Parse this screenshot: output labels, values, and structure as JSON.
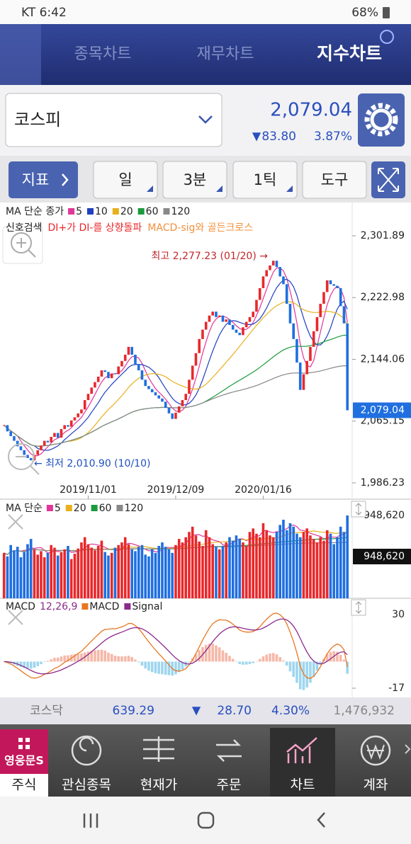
{
  "status_bar": {
    "carrier_time": "KT 6:42",
    "battery": "68%"
  },
  "tabs": [
    "종목차트",
    "재무차트",
    "지수차트"
  ],
  "index": {
    "name": "코스피",
    "price": "2,079.04",
    "change_arrow": "▼",
    "change": "83.80",
    "change_pct": "3.87%"
  },
  "toolbar": [
    "지표",
    "일",
    "3분",
    "1틱",
    "도구"
  ],
  "chart_data": [
    {
      "type": "candlestick",
      "legend_title": "MA 단순 종가",
      "ma": [
        {
          "name": "5",
          "color": "#e0359a"
        },
        {
          "name": "10",
          "color": "#1f3fbf"
        },
        {
          "name": "20",
          "color": "#e8b01c"
        },
        {
          "name": "60",
          "color": "#1c9a3c"
        },
        {
          "name": "120",
          "color": "#888888"
        }
      ],
      "signal_label": "신호검색",
      "signals": [
        "DI+가 DI-를 상향돌파",
        "MACD-sig와 골든크로스"
      ],
      "annotations": [
        "최고 2,277.23 (01/20) →",
        "← 최저 2,010.90 (10/10)"
      ],
      "up_color": "#e8282b",
      "down_color": "#1f6fe0",
      "closes": [
        2060,
        2052,
        2046,
        2040,
        2033,
        2028,
        2022,
        2018,
        2015,
        2022,
        2028,
        2034,
        2040,
        2038,
        2045,
        2050,
        2044,
        2055,
        2060,
        2058,
        2066,
        2070,
        2075,
        2080,
        2092,
        2100,
        2108,
        2115,
        2122,
        2130,
        2128,
        2120,
        2126,
        2125,
        2135,
        2142,
        2150,
        2160,
        2150,
        2138,
        2130,
        2118,
        2110,
        2106,
        2102,
        2098,
        2094,
        2090,
        2082,
        2075,
        2068,
        2076,
        2084,
        2092,
        2100,
        2118,
        2136,
        2152,
        2170,
        2182,
        2192,
        2200,
        2205,
        2198,
        2200,
        2192,
        2195,
        2188,
        2182,
        2178,
        2175,
        2185,
        2192,
        2198,
        2205,
        2220,
        2235,
        2250,
        2258,
        2264,
        2270,
        2262,
        2250,
        2240,
        2215,
        2190,
        2170,
        2140,
        2105,
        2125,
        2142,
        2160,
        2180,
        2198,
        2215,
        2230,
        2245,
        2240,
        2238,
        2235,
        2212,
        2190,
        2079
      ],
      "ylim": [
        1986.23,
        2301.89
      ],
      "yticks": [
        {
          "value": 2301.89,
          "label": "2,301.89"
        },
        {
          "value": 2222.98,
          "label": "2,222.98"
        },
        {
          "value": 2144.06,
          "label": "2,144.06"
        },
        {
          "value": 2065.15,
          "label": "2,065.15"
        },
        {
          "value": 1986.23,
          "label": "1,986.23"
        }
      ],
      "xticks": [
        {
          "value": 25,
          "label": "2019/11/01"
        },
        {
          "value": 51,
          "label": "2019/12/09"
        },
        {
          "value": 77,
          "label": "2020/01/16"
        }
      ]
    },
    {
      "type": "bar",
      "legend_title": "MA 단순",
      "ma": [
        {
          "name": "5",
          "color": "#e0359a"
        },
        {
          "name": "20",
          "color": "#e8b01c"
        },
        {
          "name": "60",
          "color": "#1c9a3c"
        },
        {
          "name": "120",
          "color": "#888888"
        }
      ],
      "values": [
        520000,
        480000,
        610000,
        550000,
        590000,
        470000,
        530000,
        620000,
        680000,
        560000,
        500000,
        540000,
        470000,
        520000,
        610000,
        580000,
        490000,
        530000,
        560000,
        600000,
        450000,
        510000,
        570000,
        640000,
        700000,
        620000,
        580000,
        550000,
        600000,
        660000,
        530000,
        490000,
        520000,
        580000,
        610000,
        640000,
        700000,
        620000,
        560000,
        540000,
        590000,
        610000,
        500000,
        480000,
        560000,
        520000,
        600000,
        640000,
        590000,
        560000,
        520000,
        610000,
        680000,
        640000,
        700000,
        760000,
        820000,
        720000,
        650000,
        600000,
        780000,
        700000,
        620000,
        590000,
        560000,
        600000,
        640000,
        700000,
        660000,
        720000,
        680000,
        640000,
        600000,
        760000,
        800000,
        740000,
        700000,
        860000,
        780000,
        720000,
        700000,
        760000,
        840000,
        900000,
        780000,
        860000,
        820000,
        740000,
        700000,
        760000,
        800000,
        720000,
        680000,
        640000,
        700000,
        660000,
        780000,
        740000,
        620000,
        700000,
        820000,
        760000,
        948620
      ],
      "ylim": [
        0,
        948620
      ],
      "yticks": [
        {
          "value": 948620,
          "label": "948,620"
        }
      ]
    },
    {
      "type": "macd",
      "legend_title": "MACD",
      "params": "12,26,9",
      "series": [
        {
          "name": "MACD",
          "color": "#e87722"
        },
        {
          "name": "Signal",
          "color": "#8b2a8b"
        }
      ],
      "hist_up_color": "#f5b8a8",
      "hist_down_color": "#9ed6ee",
      "ylim": [
        -17,
        30
      ],
      "yticks": [
        30,
        -17
      ]
    }
  ],
  "ticker": {
    "name": "코스닥",
    "price": "639.29",
    "change_arrow": "▼",
    "change": "28.70",
    "change_pct": "4.30%",
    "volume": "1,476,932"
  },
  "nav": {
    "brand": "영웅문S",
    "items": [
      "주식",
      "관심종목",
      "현재가",
      "주문",
      "차트",
      "계좌"
    ]
  }
}
